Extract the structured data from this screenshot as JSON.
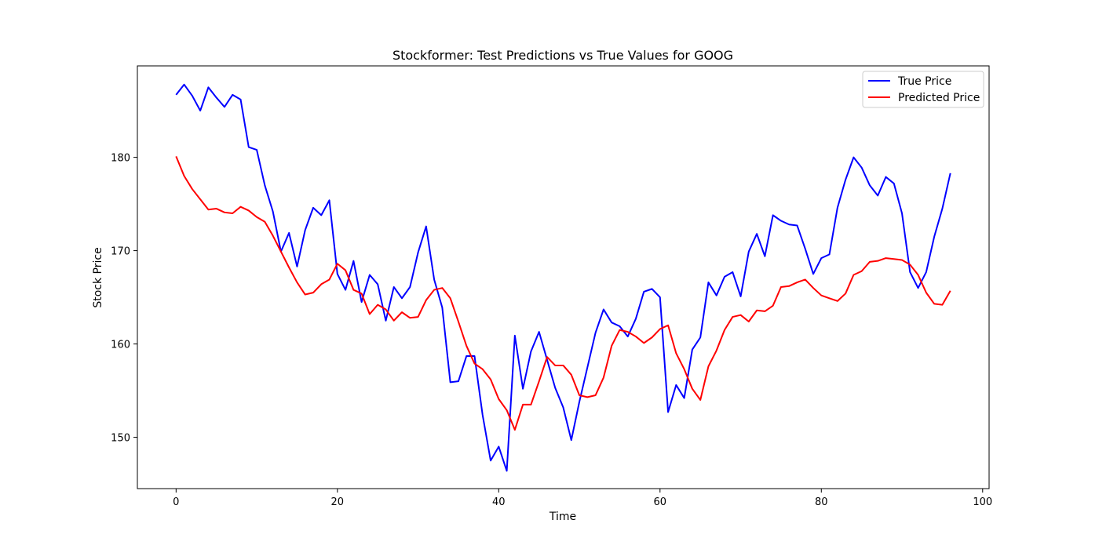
{
  "chart_data": {
    "type": "line",
    "title": "Stockformer: Test Predictions vs True Values for GOOG",
    "xlabel": "Time",
    "ylabel": "Stock Price",
    "xlim": [
      -4.8,
      100.8
    ],
    "ylim": [
      144.5,
      189.8
    ],
    "xticks": [
      0,
      20,
      40,
      60,
      80,
      100
    ],
    "yticks": [
      150,
      160,
      170,
      180
    ],
    "grid": false,
    "legend_position": "upper-right",
    "series": [
      {
        "name": "True Price",
        "color": "#0000ff",
        "values": [
          186.7,
          187.8,
          186.6,
          185.0,
          187.5,
          186.4,
          185.4,
          186.7,
          186.2,
          181.1,
          180.8,
          177.0,
          174.2,
          169.9,
          171.9,
          168.3,
          172.2,
          174.6,
          173.8,
          175.4,
          167.5,
          165.8,
          168.9,
          164.5,
          167.4,
          166.4,
          162.5,
          166.1,
          164.9,
          166.1,
          169.8,
          172.6,
          166.9,
          163.9,
          155.9,
          156.0,
          158.7,
          158.7,
          152.4,
          147.5,
          149.0,
          146.4,
          160.9,
          155.2,
          159.2,
          161.3,
          158.3,
          155.3,
          153.2,
          149.7,
          153.8,
          157.5,
          161.2,
          163.7,
          162.3,
          161.9,
          160.8,
          162.7,
          165.6,
          165.9,
          165.0,
          152.7,
          155.6,
          154.2,
          159.4,
          160.7,
          166.6,
          165.2,
          167.2,
          167.7,
          165.1,
          169.9,
          171.8,
          169.4,
          173.8,
          173.2,
          172.8,
          172.7,
          170.2,
          167.5,
          169.2,
          169.6,
          174.6,
          177.6,
          180.0,
          178.9,
          177.0,
          175.9,
          177.9,
          177.2,
          174.0,
          167.7,
          166.0,
          167.7,
          171.5,
          174.5,
          178.3
        ]
      },
      {
        "name": "Predicted Price",
        "color": "#ff0000",
        "values": [
          180.1,
          178.0,
          176.6,
          175.5,
          174.4,
          174.5,
          174.1,
          174.0,
          174.7,
          174.3,
          173.6,
          173.1,
          171.6,
          169.9,
          168.2,
          166.6,
          165.3,
          165.5,
          166.4,
          166.9,
          168.6,
          167.9,
          165.8,
          165.4,
          163.2,
          164.2,
          163.7,
          162.5,
          163.4,
          162.8,
          162.9,
          164.7,
          165.8,
          166.0,
          164.9,
          162.4,
          159.8,
          157.9,
          157.3,
          156.2,
          154.1,
          152.9,
          150.8,
          153.5,
          153.5,
          156.0,
          158.6,
          157.7,
          157.7,
          156.7,
          154.5,
          154.3,
          154.5,
          156.4,
          159.8,
          161.5,
          161.3,
          160.8,
          160.1,
          160.7,
          161.6,
          162.0,
          159.0,
          157.3,
          155.2,
          154.0,
          157.6,
          159.3,
          161.5,
          162.9,
          163.1,
          162.4,
          163.6,
          163.5,
          164.1,
          166.1,
          166.2,
          166.6,
          166.9,
          166.0,
          165.2,
          164.9,
          164.6,
          165.4,
          167.4,
          167.8,
          168.8,
          168.9,
          169.2,
          169.1,
          169.0,
          168.5,
          167.4,
          165.5,
          164.3,
          164.2,
          165.7
        ]
      }
    ]
  }
}
